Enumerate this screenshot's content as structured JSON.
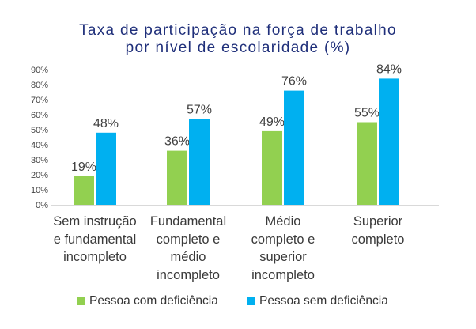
{
  "chart_data": {
    "type": "bar",
    "title_lines": [
      "Taxa de participação na força de trabalho",
      "por nível de escolaridade (%)"
    ],
    "categories": [
      [
        "Sem instrução",
        "e fundamental",
        "incompleto"
      ],
      [
        "Fundamental",
        "completo e",
        "médio",
        "incompleto"
      ],
      [
        "Médio",
        "completo e",
        "superior",
        "incompleto"
      ],
      [
        "Superior",
        "completo"
      ]
    ],
    "series": [
      {
        "name": "Pessoa com deficiência",
        "color": "#92d050",
        "values": [
          19,
          36,
          49,
          55
        ],
        "labels": [
          "19%",
          "36%",
          "49%",
          "55%"
        ]
      },
      {
        "name": "Pessoa sem deficiência",
        "color": "#00b0f0",
        "values": [
          48,
          57,
          76,
          84
        ],
        "labels": [
          "48%",
          "57%",
          "76%",
          "84%"
        ]
      }
    ],
    "ylim": [
      0,
      90
    ],
    "yticks": [
      "0%",
      "10%",
      "20%",
      "30%",
      "40%",
      "50%",
      "60%",
      "70%",
      "80%",
      "90%"
    ],
    "legend_position": "bottom",
    "grid": false
  }
}
